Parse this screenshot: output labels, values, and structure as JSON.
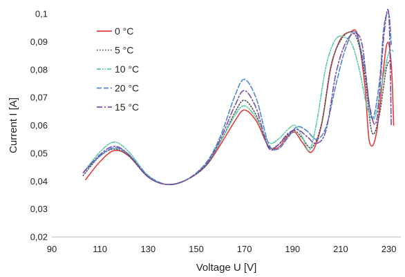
{
  "chart_data": {
    "type": "line",
    "xlabel": "Voltage U [V]",
    "ylabel": "Current I [A]",
    "xlim": [
      90,
      235
    ],
    "ylim": [
      0.02,
      0.1
    ],
    "xticks": [
      90,
      110,
      130,
      150,
      170,
      190,
      210,
      230
    ],
    "yticks": [
      0.02,
      0.03,
      0.04,
      0.05,
      0.06,
      0.07,
      0.08,
      0.09,
      0.1
    ],
    "xtick_labels": [
      "90",
      "110",
      "130",
      "150",
      "170",
      "190",
      "210",
      "230"
    ],
    "ytick_labels": [
      "0,02",
      "0,03",
      "0,04",
      "0,05",
      "0,06",
      "0,07",
      "0,08",
      "0,09",
      "0,1"
    ],
    "grid": "none",
    "legend_position": "top-left",
    "series": [
      {
        "name": "0 °C",
        "color": "#e03c3c",
        "dash": "solid",
        "x": [
          104,
          110,
          116,
          122,
          130,
          138,
          146,
          154,
          160,
          166,
          170,
          175,
          180,
          184,
          188,
          191,
          194,
          198,
          202,
          206,
          210,
          214,
          217,
          220,
          222,
          225,
          229,
          231,
          232
        ],
        "y": [
          0.0405,
          0.047,
          0.051,
          0.049,
          0.0415,
          0.0388,
          0.0405,
          0.0455,
          0.053,
          0.0615,
          0.0655,
          0.0615,
          0.0525,
          0.052,
          0.056,
          0.0575,
          0.054,
          0.0505,
          0.06,
          0.081,
          0.091,
          0.0935,
          0.0925,
          0.0745,
          0.054,
          0.058,
          0.0885,
          0.082,
          0.06
        ]
      },
      {
        "name": "5 °C",
        "color": "#555555",
        "dash": "1.5,2.5",
        "x": [
          103,
          110,
          116,
          122,
          130,
          138,
          146,
          154,
          160,
          166,
          170,
          175,
          180,
          184,
          188,
          191,
          194,
          198,
          202,
          206,
          210,
          214,
          217,
          220,
          223,
          226,
          229,
          231
        ],
        "y": [
          0.042,
          0.049,
          0.0515,
          0.049,
          0.0415,
          0.0388,
          0.0405,
          0.0455,
          0.054,
          0.0645,
          0.069,
          0.0635,
          0.0525,
          0.053,
          0.0565,
          0.058,
          0.0555,
          0.052,
          0.0605,
          0.0815,
          0.0905,
          0.0935,
          0.0905,
          0.078,
          0.0575,
          0.0635,
          0.0805,
          0.0835
        ]
      },
      {
        "name": "10 °C",
        "color": "#5dc9a6",
        "dash": "6,2,1.5,2,1.5,2",
        "x": [
          103,
          110,
          116,
          122,
          130,
          138,
          146,
          154,
          160,
          166,
          170,
          175,
          180,
          184,
          188,
          191,
          194,
          197,
          200,
          204,
          208,
          212,
          215,
          218,
          221,
          224,
          227,
          230,
          232
        ],
        "y": [
          0.043,
          0.0505,
          0.054,
          0.0505,
          0.042,
          0.0388,
          0.0405,
          0.046,
          0.054,
          0.0635,
          0.067,
          0.0625,
          0.054,
          0.055,
          0.0585,
          0.06,
          0.056,
          0.051,
          0.061,
          0.0815,
          0.091,
          0.0915,
          0.0885,
          0.079,
          0.0665,
          0.0625,
          0.0745,
          0.086,
          0.0865
        ]
      },
      {
        "name": "20 °C",
        "color": "#4d88cf",
        "dash": "7,3",
        "x": [
          103,
          110,
          116,
          122,
          130,
          138,
          146,
          154,
          160,
          166,
          170,
          175,
          180,
          184,
          188,
          192,
          196,
          200,
          204,
          208,
          212,
          216,
          220,
          223,
          226,
          228,
          230,
          231
        ],
        "y": [
          0.043,
          0.049,
          0.052,
          0.0495,
          0.042,
          0.0388,
          0.0405,
          0.0465,
          0.056,
          0.0705,
          0.0765,
          0.0695,
          0.0535,
          0.0515,
          0.0555,
          0.0595,
          0.058,
          0.055,
          0.0595,
          0.0745,
          0.0875,
          0.0935,
          0.0805,
          0.0625,
          0.075,
          0.0955,
          0.1,
          0.089
        ]
      },
      {
        "name": "15 °C",
        "color": "#7b4aa6",
        "dash": "8,3,2,3",
        "x": [
          103,
          110,
          116,
          122,
          130,
          138,
          146,
          154,
          160,
          166,
          170,
          175,
          180,
          184,
          188,
          192,
          196,
          200,
          204,
          208,
          212,
          216,
          219,
          222,
          225,
          228,
          230,
          231
        ],
        "y": [
          0.043,
          0.0495,
          0.0525,
          0.0495,
          0.0415,
          0.0388,
          0.0405,
          0.046,
          0.055,
          0.067,
          0.0725,
          0.066,
          0.052,
          0.053,
          0.057,
          0.0585,
          0.056,
          0.0535,
          0.0585,
          0.0785,
          0.0895,
          0.093,
          0.0885,
          0.067,
          0.062,
          0.0925,
          0.0995,
          0.06
        ]
      }
    ]
  }
}
